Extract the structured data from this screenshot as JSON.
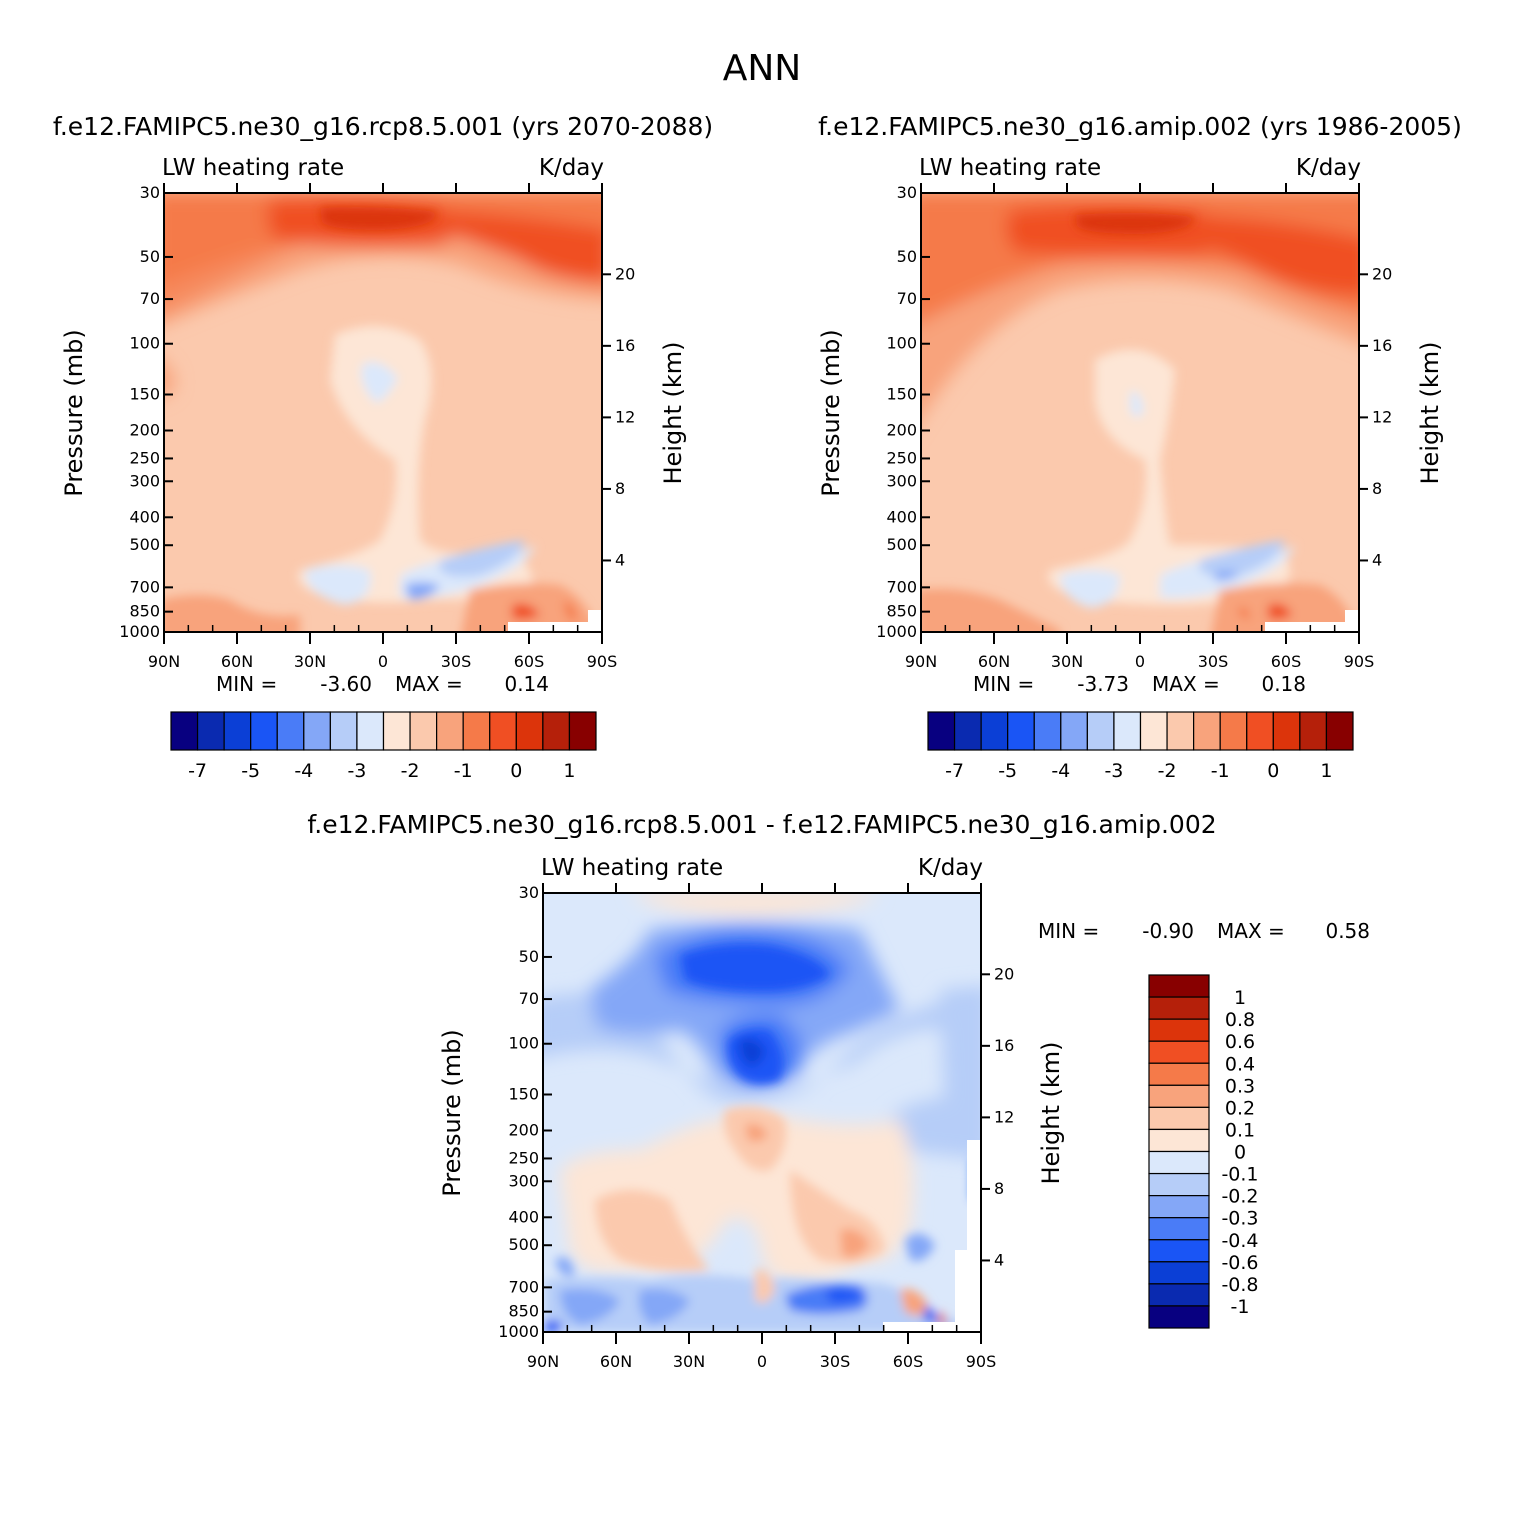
{
  "figure": {
    "title": "ANN"
  },
  "chart_data": [
    {
      "type": "heatmap",
      "title": "f.e12.FAMIPC5.ne30_g16.rcp8.5.001 (yrs 2070-2088)",
      "left_label": "LW heating rate",
      "right_label": "K/day",
      "xlabel": "",
      "ylabel": "Pressure (mb)",
      "ylabel_right": "Height (km)",
      "x_ticks": [
        "90N",
        "60N",
        "30N",
        "0",
        "30S",
        "60S",
        "90S"
      ],
      "y_ticks": [
        "30",
        "50",
        "70",
        "100",
        "150",
        "200",
        "250",
        "300",
        "400",
        "500",
        "700",
        "850",
        "1000"
      ],
      "y_ticks_right": [
        "20",
        "16",
        "12",
        "8",
        "4"
      ],
      "stats": {
        "min_label": "MIN =",
        "min": "-3.60",
        "max_label": "MAX =",
        "max": "0.14"
      },
      "colorbar": {
        "orientation": "horizontal",
        "labels": [
          "-7",
          "-5",
          "-4",
          "-3",
          "-2",
          "-1",
          "0",
          "1"
        ],
        "colors": [
          "#080080",
          "#0a2ab0",
          "#0b3fd6",
          "#1a55f5",
          "#4a7cf7",
          "#84a7f7",
          "#b6cdf8",
          "#dbe8fb",
          "#fde6d6",
          "#fbc9ad",
          "#f8a37c",
          "#f57a49",
          "#f04f23",
          "#dc340b",
          "#b5200a",
          "#880000"
        ]
      }
    },
    {
      "type": "heatmap",
      "title": "f.e12.FAMIPC5.ne30_g16.amip.002 (yrs 1986-2005)",
      "left_label": "LW heating rate",
      "right_label": "K/day",
      "xlabel": "",
      "ylabel": "Pressure (mb)",
      "ylabel_right": "Height (km)",
      "x_ticks": [
        "90N",
        "60N",
        "30N",
        "0",
        "30S",
        "60S",
        "90S"
      ],
      "y_ticks": [
        "30",
        "50",
        "70",
        "100",
        "150",
        "200",
        "250",
        "300",
        "400",
        "500",
        "700",
        "850",
        "1000"
      ],
      "y_ticks_right": [
        "20",
        "16",
        "12",
        "8",
        "4"
      ],
      "stats": {
        "min_label": "MIN =",
        "min": "-3.73",
        "max_label": "MAX =",
        "max": "0.18"
      },
      "colorbar": {
        "orientation": "horizontal",
        "labels": [
          "-7",
          "-5",
          "-4",
          "-3",
          "-2",
          "-1",
          "0",
          "1"
        ],
        "colors": [
          "#080080",
          "#0a2ab0",
          "#0b3fd6",
          "#1a55f5",
          "#4a7cf7",
          "#84a7f7",
          "#b6cdf8",
          "#dbe8fb",
          "#fde6d6",
          "#fbc9ad",
          "#f8a37c",
          "#f57a49",
          "#f04f23",
          "#dc340b",
          "#b5200a",
          "#880000"
        ]
      }
    },
    {
      "type": "heatmap",
      "title": "f.e12.FAMIPC5.ne30_g16.rcp8.5.001 - f.e12.FAMIPC5.ne30_g16.amip.002",
      "left_label": "LW heating rate",
      "right_label": "K/day",
      "xlabel": "",
      "ylabel": "Pressure (mb)",
      "ylabel_right": "Height (km)",
      "x_ticks": [
        "90N",
        "60N",
        "30N",
        "0",
        "30S",
        "60S",
        "90S"
      ],
      "y_ticks": [
        "30",
        "50",
        "70",
        "100",
        "150",
        "200",
        "250",
        "300",
        "400",
        "500",
        "700",
        "850",
        "1000"
      ],
      "y_ticks_right": [
        "20",
        "16",
        "12",
        "8",
        "4"
      ],
      "stats": {
        "min_label": "MIN =",
        "min": "-0.90",
        "max_label": "MAX =",
        "max": "0.58"
      },
      "colorbar": {
        "orientation": "vertical",
        "labels": [
          "1",
          "0.8",
          "0.6",
          "0.4",
          "0.3",
          "0.2",
          "0.1",
          "0",
          "-0.1",
          "-0.2",
          "-0.3",
          "-0.4",
          "-0.6",
          "-0.8",
          "-1"
        ],
        "colors": [
          "#880000",
          "#b5200a",
          "#dc340b",
          "#f04f23",
          "#f57a49",
          "#f8a37c",
          "#fbc9ad",
          "#fde6d6",
          "#dbe8fb",
          "#b6cdf8",
          "#84a7f7",
          "#4a7cf7",
          "#1a55f5",
          "#0b3fd6",
          "#0a2ab0",
          "#080080"
        ]
      }
    }
  ]
}
